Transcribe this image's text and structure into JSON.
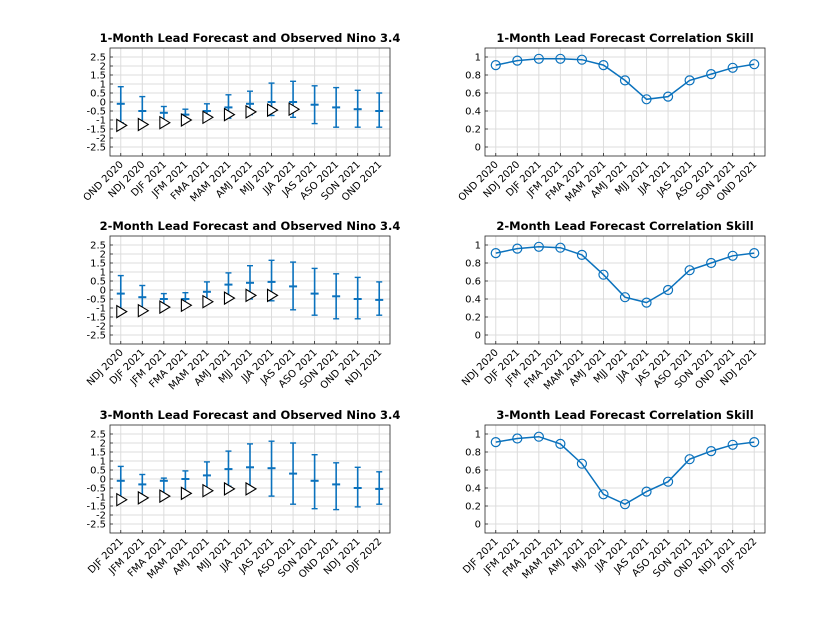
{
  "colors": {
    "series": "#0b72bd",
    "marker_edge": "#000000",
    "marker_fill": "#ffffff",
    "grid": "#dcdcdc"
  },
  "chart_data": [
    {
      "id": "fc1",
      "type": "errorbar",
      "title": "1-Month Lead Forecast and Observed Nino 3.4",
      "ylim": [
        -3,
        3
      ],
      "yticks": [
        "-2.5",
        "-2",
        "-1.5",
        "-1",
        "-0.5",
        "0",
        "0.5",
        "1",
        "1.5",
        "2",
        "2.5"
      ],
      "grid": true,
      "categories": [
        "OND 2020",
        "NDJ 2020",
        "DJF 2021",
        "JFM 2021",
        "FMA 2021",
        "MAM 2021",
        "AMJ 2021",
        "MJJ 2021",
        "JJA 2021",
        "JAS 2021",
        "ASO 2021",
        "SON 2021",
        "OND 2021"
      ],
      "forecast": {
        "mean": [
          -0.1,
          -0.5,
          -0.6,
          -0.7,
          -0.5,
          -0.3,
          -0.1,
          0.0,
          0.0,
          -0.15,
          -0.3,
          -0.4,
          -0.5
        ],
        "low": [
          -1.15,
          -1.15,
          -1.05,
          -1.0,
          -0.95,
          -0.9,
          -0.7,
          -0.75,
          -0.85,
          -1.2,
          -1.4,
          -1.4,
          -1.4
        ],
        "high": [
          0.85,
          0.3,
          -0.25,
          -0.4,
          -0.1,
          0.4,
          0.6,
          1.05,
          1.15,
          0.9,
          0.8,
          0.65,
          0.5
        ]
      },
      "observed": [
        -1.3,
        -1.25,
        -1.15,
        -1.0,
        -0.85,
        -0.7,
        -0.55,
        -0.45,
        -0.4
      ]
    },
    {
      "id": "sk1",
      "type": "line",
      "title": "1-Month Lead Forecast Correlation Skill",
      "ylim": [
        -0.1,
        1.1
      ],
      "yticks": [
        "0",
        "0.2",
        "0.4",
        "0.6",
        "0.8",
        "1"
      ],
      "grid": true,
      "categories": [
        "OND 2020",
        "NDJ 2020",
        "DJF 2021",
        "JFM 2021",
        "FMA 2021",
        "MAM 2021",
        "AMJ 2021",
        "MJJ 2021",
        "JJA 2021",
        "JAS 2021",
        "ASO 2021",
        "SON 2021",
        "OND 2021"
      ],
      "values": [
        0.91,
        0.96,
        0.98,
        0.98,
        0.97,
        0.91,
        0.74,
        0.53,
        0.56,
        0.74,
        0.81,
        0.88,
        0.92
      ]
    },
    {
      "id": "fc2",
      "type": "errorbar",
      "title": "2-Month Lead Forecast and Observed Nino 3.4",
      "ylim": [
        -3,
        3
      ],
      "yticks": [
        "-2.5",
        "-2",
        "-1.5",
        "-1",
        "-0.5",
        "0",
        "0.5",
        "1",
        "1.5",
        "2",
        "2.5"
      ],
      "grid": true,
      "categories": [
        "NDJ 2020",
        "DJF 2021",
        "JFM 2021",
        "FMA 2021",
        "MAM 2021",
        "AMJ 2021",
        "MJJ 2021",
        "JJA 2021",
        "JAS 2021",
        "ASO 2021",
        "SON 2021",
        "OND 2021",
        "NDJ 2021"
      ],
      "forecast": {
        "mean": [
          -0.2,
          -0.4,
          -0.5,
          -0.5,
          -0.1,
          0.3,
          0.4,
          0.45,
          0.2,
          -0.2,
          -0.35,
          -0.5,
          -0.55
        ],
        "low": [
          -1.15,
          -1.1,
          -0.95,
          -0.9,
          -0.75,
          -0.55,
          -0.5,
          -0.6,
          -1.1,
          -1.4,
          -1.6,
          -1.6,
          -1.4
        ],
        "high": [
          0.8,
          0.25,
          -0.2,
          -0.15,
          0.45,
          0.95,
          1.35,
          1.65,
          1.55,
          1.2,
          0.9,
          0.7,
          0.45
        ]
      },
      "observed": [
        -1.2,
        -1.15,
        -0.95,
        -0.85,
        -0.65,
        -0.45,
        -0.3,
        -0.3
      ]
    },
    {
      "id": "sk2",
      "type": "line",
      "title": "2-Month Lead Forecast Correlation Skill",
      "ylim": [
        -0.1,
        1.1
      ],
      "yticks": [
        "0",
        "0.2",
        "0.4",
        "0.6",
        "0.8",
        "1"
      ],
      "grid": true,
      "categories": [
        "NDJ 2020",
        "DJF 2021",
        "JFM 2021",
        "FMA 2021",
        "MAM 2021",
        "AMJ 2021",
        "MJJ 2021",
        "JJA 2021",
        "JAS 2021",
        "ASO 2021",
        "SON 2021",
        "OND 2021",
        "NDJ 2021"
      ],
      "values": [
        0.91,
        0.96,
        0.98,
        0.97,
        0.89,
        0.67,
        0.42,
        0.36,
        0.5,
        0.72,
        0.8,
        0.88,
        0.91
      ]
    },
    {
      "id": "fc3",
      "type": "errorbar",
      "title": "3-Month Lead Forecast and Observed Nino 3.4",
      "ylim": [
        -3,
        3
      ],
      "yticks": [
        "-2.5",
        "-2",
        "-1.5",
        "-1",
        "-0.5",
        "0",
        "0.5",
        "1",
        "1.5",
        "2",
        "2.5"
      ],
      "grid": true,
      "categories": [
        "DJF 2021",
        "JFM 2021",
        "FMA 2021",
        "MAM 2021",
        "AMJ 2021",
        "MJJ 2021",
        "JJA 2021",
        "JAS 2021",
        "ASO 2021",
        "SON 2021",
        "OND 2021",
        "NDJ 2021",
        "DJF 2022"
      ],
      "forecast": {
        "mean": [
          -0.1,
          -0.3,
          -0.1,
          0.0,
          0.2,
          0.55,
          0.65,
          0.6,
          0.3,
          -0.1,
          -0.3,
          -0.5,
          -0.55
        ],
        "low": [
          -1.05,
          -1.0,
          -0.95,
          -0.75,
          -0.55,
          -0.4,
          -0.5,
          -0.95,
          -1.4,
          -1.65,
          -1.7,
          -1.55,
          -1.4
        ],
        "high": [
          0.7,
          0.25,
          0.05,
          0.45,
          0.95,
          1.55,
          1.95,
          2.1,
          2.0,
          1.35,
          0.9,
          0.65,
          0.4
        ]
      },
      "observed": [
        -1.15,
        -1.05,
        -0.95,
        -0.8,
        -0.65,
        -0.55,
        -0.55
      ]
    },
    {
      "id": "sk3",
      "type": "line",
      "title": "3-Month Lead Forecast Correlation Skill",
      "ylim": [
        -0.1,
        1.1
      ],
      "yticks": [
        "0",
        "0.2",
        "0.4",
        "0.6",
        "0.8",
        "1"
      ],
      "grid": true,
      "categories": [
        "DJF 2021",
        "JFM 2021",
        "FMA 2021",
        "MAM 2021",
        "AMJ 2021",
        "MJJ 2021",
        "JJA 2021",
        "JAS 2021",
        "ASO 2021",
        "SON 2021",
        "OND 2021",
        "NDJ 2021",
        "DJF 2022"
      ],
      "values": [
        0.91,
        0.95,
        0.97,
        0.89,
        0.67,
        0.33,
        0.22,
        0.36,
        0.47,
        0.72,
        0.81,
        0.88,
        0.91
      ]
    }
  ]
}
